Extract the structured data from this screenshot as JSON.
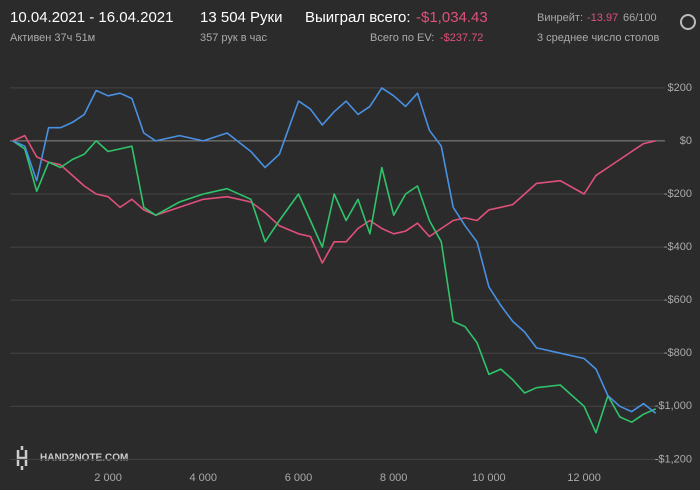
{
  "header": {
    "date_range": "10.04.2021 - 16.04.2021",
    "active": "Активен 37ч 51м",
    "hands": "13 504 Руки",
    "hands_per_hour": "357 рук в час",
    "won_label": "Выиграл всего:",
    "won_value": "-$1,034.43",
    "ev_label": "Всего по EV:",
    "ev_value": "-$237.72",
    "winrate_label": "Винрейт:",
    "winrate_value": "-13.97",
    "winrate_unit": "66/100",
    "tables": "3 среднее число столов",
    "logo": "HAND2NOTE.COM"
  },
  "chart_data": {
    "type": "line",
    "grid": true,
    "xlim": [
      -60,
      13700
    ],
    "ylim": [
      -1210,
      305
    ],
    "xticks": [
      {
        "value": 2000,
        "label": "2 000"
      },
      {
        "value": 4000,
        "label": "4 000"
      },
      {
        "value": 6000,
        "label": "6 000"
      },
      {
        "value": 8000,
        "label": "8 000"
      },
      {
        "value": 10000,
        "label": "10 000"
      },
      {
        "value": 12000,
        "label": "12 000"
      }
    ],
    "yticks": [
      {
        "value": 200,
        "label": "$200"
      },
      {
        "value": 0,
        "label": "$0"
      },
      {
        "value": -200,
        "label": "-$200"
      },
      {
        "value": -400,
        "label": "-$400"
      },
      {
        "value": -600,
        "label": "-$600"
      },
      {
        "value": -800,
        "label": "-$800"
      },
      {
        "value": -1000,
        "label": "-$1,000"
      },
      {
        "value": -1200,
        "label": "-$1,200"
      }
    ],
    "x": [
      0,
      250,
      500,
      750,
      1000,
      1250,
      1500,
      1750,
      2000,
      2250,
      2500,
      2750,
      3000,
      3500,
      4000,
      4500,
      5000,
      5300,
      5600,
      6000,
      6250,
      6500,
      6750,
      7000,
      7250,
      7500,
      7750,
      8000,
      8250,
      8500,
      8750,
      9000,
      9250,
      9500,
      9750,
      10000,
      10250,
      10500,
      10750,
      11000,
      11500,
      12000,
      12250,
      12500,
      12750,
      13000,
      13250,
      13504
    ],
    "series": [
      {
        "color": "#e0507a",
        "values": [
          0,
          20,
          -60,
          -80,
          -90,
          -130,
          -170,
          -200,
          -210,
          -250,
          -220,
          -260,
          -280,
          -250,
          -220,
          -210,
          -230,
          -270,
          -320,
          -350,
          -360,
          -460,
          -380,
          -380,
          -330,
          -300,
          -330,
          -350,
          -340,
          -310,
          -360,
          -330,
          -300,
          -290,
          -300,
          -260,
          -250,
          -240,
          -200,
          -160,
          -150,
          -200,
          -130,
          -100,
          -70,
          -40,
          -10,
          0
        ]
      },
      {
        "color": "#2fc46a",
        "values": [
          0,
          -30,
          -190,
          -80,
          -100,
          -70,
          -50,
          0,
          -40,
          -30,
          -20,
          -250,
          -280,
          -230,
          -200,
          -180,
          -220,
          -380,
          -300,
          -200,
          -300,
          -400,
          -200,
          -300,
          -220,
          -350,
          -100,
          -280,
          -200,
          -170,
          -300,
          -380,
          -680,
          -700,
          -760,
          -880,
          -860,
          -900,
          -950,
          -930,
          -920,
          -1000,
          -1100,
          -960,
          -1040,
          -1060,
          -1030,
          -1010
        ]
      },
      {
        "color": "#4a90e2",
        "values": [
          0,
          -20,
          -150,
          50,
          50,
          70,
          100,
          190,
          170,
          180,
          160,
          30,
          0,
          20,
          0,
          30,
          -40,
          -100,
          -50,
          150,
          120,
          60,
          110,
          150,
          100,
          130,
          200,
          170,
          130,
          180,
          40,
          -20,
          -250,
          -320,
          -380,
          -550,
          -620,
          -680,
          -720,
          -780,
          -800,
          -820,
          -860,
          -960,
          -1000,
          -1020,
          -990,
          -1026
        ]
      }
    ]
  }
}
